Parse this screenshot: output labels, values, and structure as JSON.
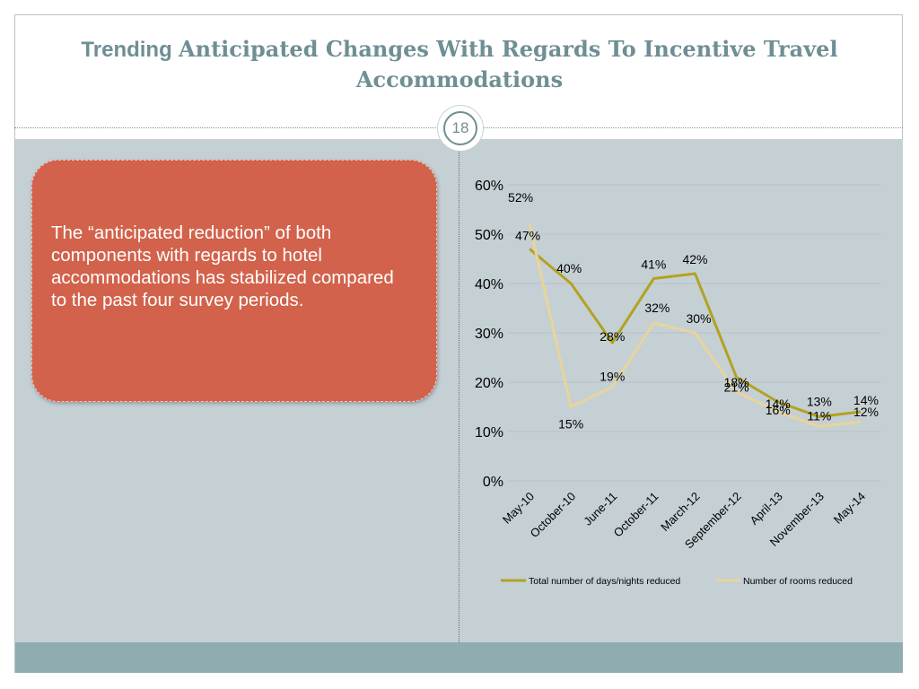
{
  "slide": {
    "title_prefix": "Trending",
    "title_main": "Anticipated Changes With Regards To Incentive Travel Accommodations",
    "page_number": "18",
    "callout_text": "The “anticipated reduction” of both components with regards to hotel accommodations has stabilized compared to the past four survey periods."
  },
  "chart_data": {
    "type": "line",
    "categories": [
      "May-10",
      "October-10",
      "June-11",
      "October-11",
      "March-12",
      "September-12",
      "April-13",
      "November-13",
      "May-14"
    ],
    "series": [
      {
        "name": "Total number of days/nights reduced",
        "values": [
          47,
          40,
          28,
          41,
          42,
          21,
          16,
          13,
          14
        ],
        "color": "#b3a221",
        "labels": [
          "47%",
          "40%",
          "28%",
          "41%",
          "42%",
          "21%",
          "16%",
          "13%",
          "14%"
        ]
      },
      {
        "name": "Number of rooms reduced",
        "values": [
          52,
          15,
          19,
          32,
          30,
          18,
          14,
          11,
          12
        ],
        "color": "#e8d49b",
        "labels": [
          "52%",
          "15%",
          "19%",
          "32%",
          "30%",
          "18%",
          "14%",
          "11%",
          "12%"
        ]
      }
    ],
    "ylim": [
      0,
      60
    ],
    "y_ticks": [
      "0%",
      "10%",
      "20%",
      "30%",
      "40%",
      "50%",
      "60%"
    ],
    "grid": true,
    "legend_position": "bottom"
  }
}
